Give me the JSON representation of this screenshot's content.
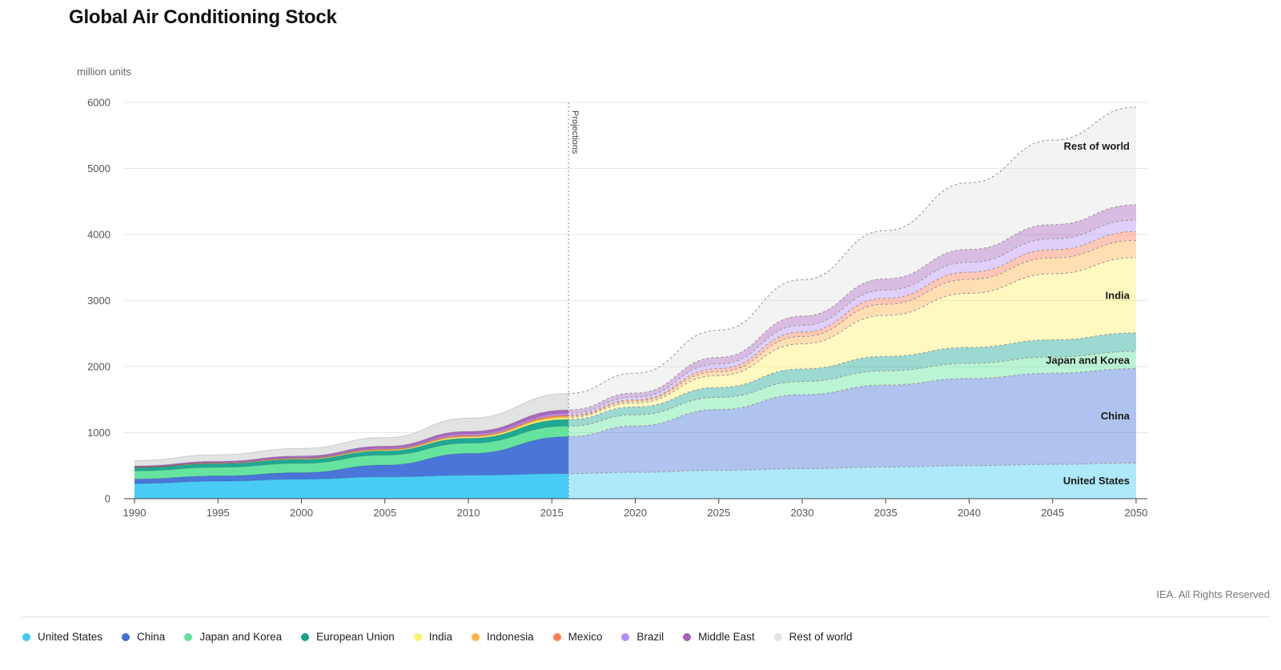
{
  "title": "Global Air Conditioning Stock",
  "credit": "IEA. All Rights Reserved",
  "chart_data": {
    "type": "area",
    "stacked": true,
    "title": "Global Air Conditioning Stock",
    "ylabel": "million units",
    "xlabel": "",
    "ylim": [
      0,
      6000
    ],
    "xlim": [
      1990,
      2050
    ],
    "yticks": [
      0,
      1000,
      2000,
      3000,
      4000,
      5000,
      6000
    ],
    "xticks": [
      1990,
      1995,
      2000,
      2005,
      2010,
      2015,
      2020,
      2025,
      2030,
      2035,
      2040,
      2045,
      2050
    ],
    "grid": true,
    "legend_position": "bottom",
    "projection_start": 2016,
    "projection_label": "Projections",
    "x": [
      1990,
      1995,
      2000,
      2005,
      2010,
      2016,
      2020,
      2025,
      2030,
      2035,
      2040,
      2045,
      2050
    ],
    "series": [
      {
        "name": "United States",
        "color": "#3ec9f5",
        "values": [
          230,
          265,
          295,
          330,
          355,
          380,
          400,
          430,
          455,
          480,
          500,
          520,
          540
        ]
      },
      {
        "name": "China",
        "color": "#3f6fd6",
        "values": [
          70,
          80,
          100,
          180,
          330,
          560,
          700,
          920,
          1120,
          1240,
          1320,
          1380,
          1430
        ]
      },
      {
        "name": "Japan and Korea",
        "color": "#5ee39a",
        "values": [
          120,
          130,
          140,
          150,
          155,
          160,
          170,
          185,
          200,
          215,
          230,
          245,
          260
        ]
      },
      {
        "name": "European Union",
        "color": "#14a48f",
        "values": [
          50,
          55,
          60,
          65,
          75,
          100,
          120,
          150,
          190,
          220,
          240,
          260,
          280
        ]
      },
      {
        "name": "India",
        "color": "#fff06a",
        "values": [
          3,
          5,
          8,
          12,
          20,
          30,
          60,
          180,
          380,
          620,
          820,
          1000,
          1140
        ]
      },
      {
        "name": "Indonesia",
        "color": "#ffb347",
        "values": [
          2,
          3,
          5,
          8,
          12,
          20,
          30,
          60,
          110,
          170,
          210,
          240,
          260
        ]
      },
      {
        "name": "Mexico",
        "color": "#ff7a50",
        "values": [
          3,
          4,
          6,
          8,
          12,
          17,
          20,
          45,
          70,
          90,
          110,
          125,
          135
        ]
      },
      {
        "name": "Brazil",
        "color": "#b58cf5",
        "values": [
          3,
          5,
          8,
          12,
          20,
          27,
          40,
          70,
          100,
          125,
          150,
          165,
          175
        ]
      },
      {
        "name": "Middle East",
        "color": "#a560b8",
        "values": [
          15,
          20,
          25,
          30,
          40,
          50,
          60,
          100,
          140,
          170,
          195,
          215,
          230
        ]
      },
      {
        "name": "Rest of world",
        "color": "#e2e2e2",
        "values": [
          80,
          100,
          115,
          130,
          200,
          250,
          300,
          410,
          550,
          730,
          1010,
          1280,
          1480
        ]
      }
    ],
    "annotations": [
      {
        "series": "Rest of world",
        "text": "Rest of world"
      },
      {
        "series": "India",
        "text": "India"
      },
      {
        "series": "Japan and Korea",
        "text": "Japan and Korea"
      },
      {
        "series": "China",
        "text": "China"
      },
      {
        "series": "United States",
        "text": "United States"
      }
    ]
  }
}
